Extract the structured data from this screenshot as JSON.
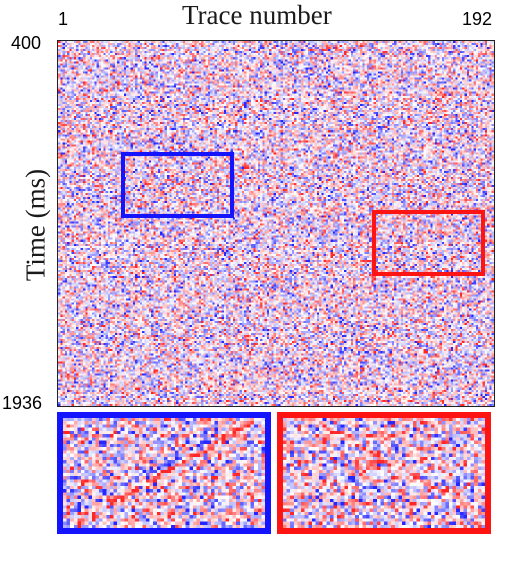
{
  "title": "Trace number",
  "x_tick_start": "1",
  "x_tick_end": "192",
  "ylabel": "Time (ms)",
  "y_tick_start": "400",
  "y_tick_end": "1936",
  "colors": {
    "blue_box": "#1414ff",
    "red_box": "#ff1414",
    "positive": "#e03030",
    "negative": "#3030e0"
  }
}
